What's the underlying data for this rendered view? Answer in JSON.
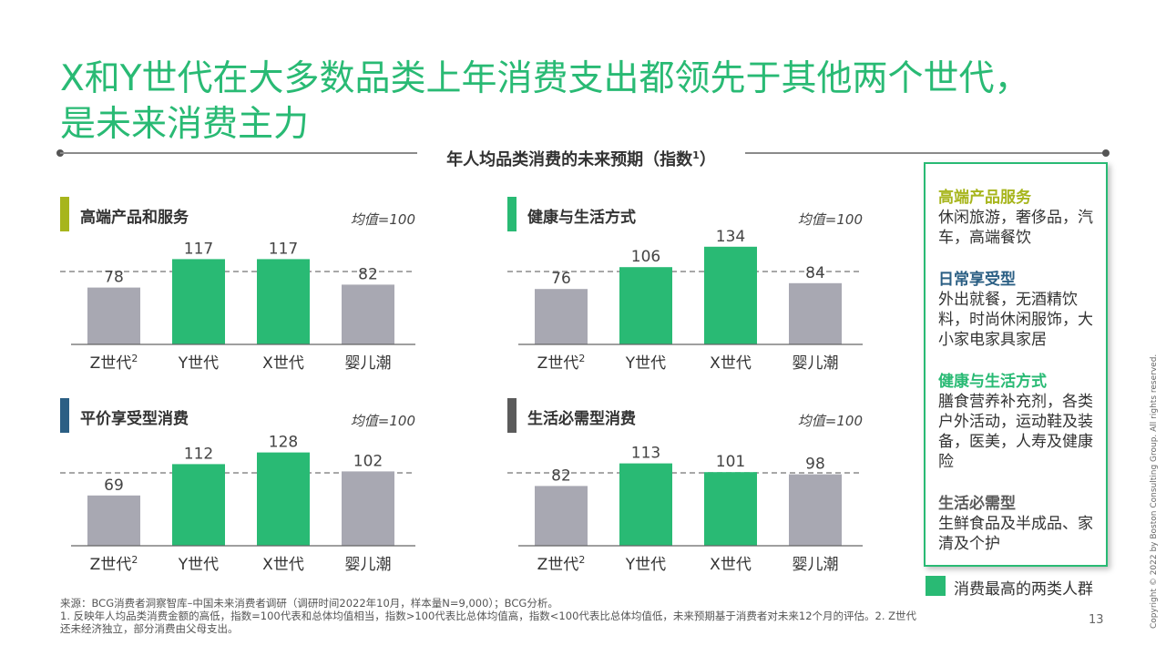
{
  "title": {
    "line1": "X和Y世代在大多数品类上年消费支出都领先于其他两个世代，",
    "line2": "是未来消费主力"
  },
  "subtitle": {
    "text": "年人均品类消费的未来预期（指数",
    "sup": "1",
    "end": "）"
  },
  "colors": {
    "highlight": "#29ba74",
    "other": "#a8a8b2",
    "avg_line": "#8c8c8c"
  },
  "chart_data": [
    {
      "type": "bar",
      "title": "高端产品和服务",
      "bar_color": "#a7b51c",
      "avg_label": "均值=100",
      "reference_line": 100,
      "categories": [
        "Z世代2",
        "Y世代",
        "X世代",
        "婴儿潮"
      ],
      "values": [
        78,
        117,
        117,
        82
      ],
      "highlight": [
        false,
        true,
        true,
        false
      ],
      "ylim": [
        0,
        140
      ]
    },
    {
      "type": "bar",
      "title": "健康与生活方式",
      "bar_color": "#29ba74",
      "avg_label": "均值=100",
      "reference_line": 100,
      "categories": [
        "Z世代2",
        "Y世代",
        "X世代",
        "婴儿潮"
      ],
      "values": [
        76,
        106,
        134,
        84
      ],
      "highlight": [
        false,
        true,
        true,
        false
      ],
      "ylim": [
        0,
        140
      ]
    },
    {
      "type": "bar",
      "title": "平价享受型消费",
      "bar_color": "#2b5f84",
      "avg_label": "均值=100",
      "reference_line": 100,
      "categories": [
        "Z世代2",
        "Y世代",
        "X世代",
        "婴儿潮"
      ],
      "values": [
        69,
        112,
        128,
        102
      ],
      "highlight": [
        false,
        true,
        true,
        false
      ],
      "ylim": [
        0,
        140
      ]
    },
    {
      "type": "bar",
      "title": "生活必需型消费",
      "bar_color": "#5b5b5b",
      "avg_label": "均值=100",
      "reference_line": 100,
      "categories": [
        "Z世代2",
        "Y世代",
        "X世代",
        "婴儿潮"
      ],
      "values": [
        82,
        113,
        101,
        98
      ],
      "highlight": [
        false,
        true,
        true,
        false
      ],
      "ylim": [
        0,
        140
      ]
    }
  ],
  "legend": {
    "items": [
      {
        "head": "高端产品服务",
        "body": "休闲旅游，奢侈品，汽车，高端餐饮",
        "color": "#a7b51c"
      },
      {
        "head": "日常享受型",
        "body": "外出就餐，无酒精饮料，时尚休闲服饰，大小家电家具家居",
        "color": "#2b5f84"
      },
      {
        "head": "健康与生活方式",
        "body": "膳食营养补充剂，各类户外活动，运动鞋及装备，医美，人寿及健康险",
        "color": "#29ba74"
      },
      {
        "head": "生活必需型",
        "body": "生鲜食品及半成品、家清及个护",
        "color": "#5b5b5b"
      }
    ],
    "key_label": "消费最高的两类人群"
  },
  "footnote": {
    "line1": "来源：BCG消费者洞察智库–中国未来消费者调研（调研时间2022年10月，样本量N=9,000）；BCG分析。",
    "line2": "1. 反映年人均品类消费金额的高低，指数=100代表和总体均值相当，指数>100代表比总体均值高，指数<100代表比总体均值低，未来预期基于消费者对未来12个月的评估。2. Z世代还未经济独立，部分消费由父母支出。"
  },
  "page_number": "13",
  "copyright": "Copyright © 2022 by Boston Consulting Group. All rights reserved."
}
